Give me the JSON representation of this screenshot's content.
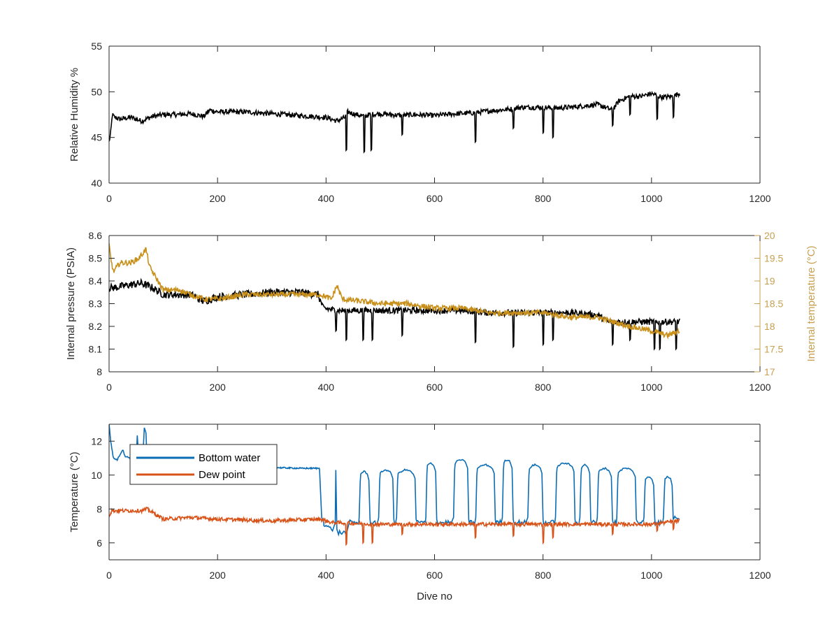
{
  "colors": {
    "black_series": "#000000",
    "gold_series": "#c8901a",
    "blue_series": "#0a6db5",
    "orange_series": "#d95319",
    "axis": "#262626",
    "right_axis": "#c8a050"
  },
  "chart_data": [
    {
      "type": "line",
      "id": "humidity",
      "xlabel": "",
      "ylabel": "Relative Humidity %",
      "xlim": [
        0,
        1200
      ],
      "ylim": [
        40,
        55
      ],
      "xticks": [
        "0",
        "200",
        "400",
        "600",
        "800",
        "1000",
        "1200"
      ],
      "yticks": [
        "40",
        "45",
        "50",
        "55"
      ],
      "series": [
        {
          "name": "Relative Humidity",
          "color": "#000000",
          "x": [
            0,
            3,
            6,
            10,
            20,
            40,
            60,
            80,
            100,
            130,
            150,
            175,
            185,
            200,
            250,
            300,
            350,
            400,
            420,
            435,
            440,
            450,
            470,
            480,
            500,
            540,
            560,
            600,
            640,
            675,
            700,
            740,
            760,
            800,
            820,
            850,
            900,
            928,
            940,
            960,
            980,
            1000,
            1020,
            1040,
            1050
          ],
          "y": [
            44.5,
            45.5,
            47.5,
            47.2,
            47.0,
            47.2,
            46.8,
            47.3,
            47.5,
            47.5,
            47.6,
            47.3,
            48.0,
            47.8,
            47.8,
            47.6,
            47.4,
            47.2,
            46.8,
            47.2,
            47.8,
            47.6,
            47.3,
            47.5,
            47.6,
            47.4,
            47.5,
            47.4,
            47.6,
            47.7,
            47.9,
            48.1,
            48.3,
            48.3,
            48.2,
            48.3,
            48.6,
            48.0,
            49.0,
            49.5,
            49.5,
            49.8,
            49.4,
            49.5,
            49.8
          ],
          "dips": [
            [
              437,
              43.6
            ],
            [
              470,
              43.4
            ],
            [
              483,
              43.6
            ],
            [
              540,
              45.3
            ],
            [
              675,
              44.5
            ],
            [
              745,
              46.0
            ],
            [
              800,
              45.5
            ],
            [
              818,
              45.0
            ],
            [
              928,
              46.3
            ],
            [
              960,
              47.5
            ],
            [
              1010,
              47.0
            ],
            [
              1040,
              47.2
            ]
          ]
        }
      ]
    },
    {
      "type": "line",
      "id": "pressure",
      "xlabel": "",
      "ylabel": "Internal pressure (PSIA)",
      "ylabel_right": "Internal temperature (°C)",
      "xlim": [
        0,
        1200
      ],
      "ylim": [
        8,
        8.6
      ],
      "ylim_right": [
        17,
        20
      ],
      "xticks": [
        "0",
        "200",
        "400",
        "600",
        "800",
        "1000",
        "1200"
      ],
      "yticks": [
        "8",
        "8.1",
        "8.2",
        "8.3",
        "8.4",
        "8.5",
        "8.6"
      ],
      "yticks_right": [
        "17",
        "17.5",
        "18",
        "18.5",
        "19",
        "19.5",
        "20"
      ],
      "series": [
        {
          "name": "Internal pressure",
          "axis": "left",
          "color": "#000000",
          "x": [
            0,
            10,
            30,
            60,
            80,
            100,
            150,
            175,
            200,
            250,
            300,
            350,
            385,
            395,
            420,
            450,
            500,
            550,
            600,
            650,
            700,
            750,
            800,
            850,
            900,
            920,
            960,
            1000,
            1050
          ],
          "y": [
            8.37,
            8.37,
            8.38,
            8.39,
            8.37,
            8.34,
            8.34,
            8.31,
            8.33,
            8.34,
            8.35,
            8.35,
            8.34,
            8.28,
            8.27,
            8.27,
            8.27,
            8.27,
            8.27,
            8.27,
            8.26,
            8.26,
            8.26,
            8.26,
            8.25,
            8.22,
            8.22,
            8.22,
            8.22
          ],
          "dips": [
            [
              418,
              8.18
            ],
            [
              437,
              8.14
            ],
            [
              468,
              8.14
            ],
            [
              485,
              8.14
            ],
            [
              540,
              8.16
            ],
            [
              675,
              8.13
            ],
            [
              745,
              8.11
            ],
            [
              800,
              8.12
            ],
            [
              818,
              8.14
            ],
            [
              928,
              8.12
            ],
            [
              960,
              8.14
            ],
            [
              1005,
              8.1
            ],
            [
              1015,
              8.1
            ],
            [
              1045,
              8.1
            ]
          ]
        },
        {
          "name": "Internal temperature",
          "axis": "right",
          "color": "#c8901a",
          "x": [
            0,
            3,
            8,
            20,
            40,
            55,
            68,
            75,
            90,
            100,
            130,
            150,
            175,
            200,
            250,
            300,
            350,
            390,
            410,
            420,
            430,
            500,
            550,
            600,
            650,
            700,
            750,
            800,
            850,
            900,
            930,
            960,
            1000,
            1030,
            1050
          ],
          "y": [
            19.8,
            19.5,
            19.2,
            19.4,
            19.4,
            19.5,
            19.7,
            19.3,
            19.0,
            18.8,
            18.8,
            18.7,
            18.6,
            18.6,
            18.7,
            18.7,
            18.7,
            18.7,
            18.6,
            18.9,
            18.6,
            18.5,
            18.5,
            18.4,
            18.4,
            18.3,
            18.3,
            18.3,
            18.2,
            18.2,
            18.1,
            18.0,
            17.9,
            17.8,
            17.9
          ],
          "dips": []
        }
      ]
    },
    {
      "type": "line",
      "id": "temperature",
      "xlabel": "Dive no",
      "ylabel": "Temperature (°C)",
      "xlim": [
        0,
        1200
      ],
      "ylim": [
        5,
        13
      ],
      "xticks": [
        "0",
        "200",
        "400",
        "600",
        "800",
        "1000",
        "1200"
      ],
      "yticks": [
        "6",
        "8",
        "10",
        "12"
      ],
      "legend": {
        "position": "top-left",
        "entries": [
          "Bottom water",
          "Dew point"
        ]
      },
      "series": [
        {
          "name": "Bottom water",
          "color": "#0a6db5",
          "base": 7.2,
          "pre_x": [
            0,
            3,
            8,
            15,
            25,
            30,
            40,
            50,
            52,
            55,
            62,
            65,
            68,
            70,
            72,
            80,
            100,
            150,
            200,
            300,
            350,
            388
          ],
          "pre_y": [
            13,
            12,
            11,
            10.9,
            11.5,
            11.1,
            11.0,
            11.0,
            12.3,
            11.0,
            11.0,
            12.8,
            12.5,
            11.0,
            10.8,
            10.8,
            10.7,
            10.6,
            10.5,
            10.45,
            10.4,
            10.4
          ],
          "plateaus": [
            [
              400,
              10.3
            ],
            [
              470,
              10.2
            ],
            [
              510,
              10.3
            ],
            [
              547,
              10.3
            ],
            [
              593,
              10.7
            ],
            [
              648,
              10.9
            ],
            [
              693,
              10.6
            ],
            [
              734,
              10.9
            ],
            [
              785,
              10.6
            ],
            [
              840,
              10.7
            ],
            [
              877,
              10.6
            ],
            [
              913,
              10.4
            ],
            [
              953,
              10.4
            ],
            [
              995,
              9.9
            ],
            [
              1030,
              9.9
            ]
          ],
          "spike": [
            418,
            10.3
          ]
        },
        {
          "name": "Dew point",
          "color": "#d95319",
          "x": [
            0,
            5,
            20,
            40,
            60,
            70,
            80,
            100,
            150,
            200,
            300,
            390,
            410,
            500,
            600,
            700,
            800,
            900,
            1000,
            1050
          ],
          "y": [
            7.6,
            7.9,
            7.9,
            7.9,
            7.9,
            8.0,
            7.8,
            7.4,
            7.5,
            7.4,
            7.3,
            7.4,
            7.2,
            7.1,
            7.1,
            7.1,
            7.1,
            7.1,
            7.1,
            7.3
          ],
          "dips": [
            [
              437,
              5.9
            ],
            [
              468,
              6.0
            ],
            [
              485,
              6.0
            ],
            [
              540,
              6.5
            ],
            [
              675,
              6.3
            ],
            [
              745,
              6.4
            ],
            [
              800,
              6.0
            ],
            [
              818,
              6.3
            ],
            [
              928,
              6.5
            ],
            [
              1010,
              6.7
            ],
            [
              1040,
              6.8
            ]
          ]
        }
      ]
    }
  ]
}
